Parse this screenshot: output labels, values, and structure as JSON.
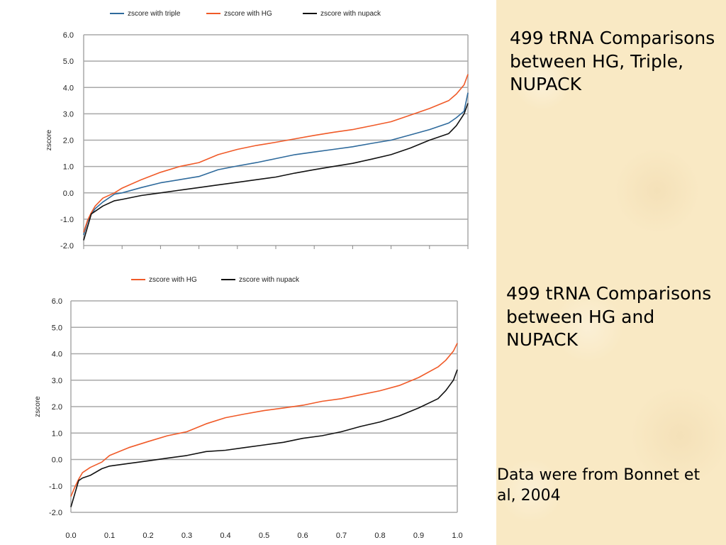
{
  "captions": {
    "chart1": "499 tRNA Comparisons between HG, Triple, NUPACK",
    "chart2": "499 tRNA Comparisons between HG and NUPACK",
    "source": "Data were from Bonnet et al, 2004"
  },
  "colors": {
    "triple": "#2e6a9c",
    "hg": "#f05a28",
    "nupack": "#111111",
    "grid": "#a8a8a8",
    "panel": "#f9e9c4"
  },
  "chart_data": [
    {
      "type": "line",
      "title": "",
      "xlabel": "",
      "ylabel": "zscore",
      "ylim": [
        -2.0,
        6.0
      ],
      "yticks": [
        "6.0",
        "5.0",
        "4.0",
        "3.0",
        "2.0",
        "1.0",
        "0.0",
        "-1.0",
        "-2.0"
      ],
      "xticks": [],
      "xlim": [
        0,
        1
      ],
      "grid": true,
      "legend": "top",
      "x": [
        0,
        0.01,
        0.02,
        0.03,
        0.05,
        0.08,
        0.1,
        0.15,
        0.2,
        0.25,
        0.3,
        0.35,
        0.4,
        0.45,
        0.5,
        0.55,
        0.6,
        0.65,
        0.7,
        0.75,
        0.8,
        0.85,
        0.9,
        0.95,
        0.97,
        0.99,
        1.0
      ],
      "series": [
        {
          "name": "zscore with triple",
          "color": "#2e6a9c",
          "values": [
            -1.6,
            -1.1,
            -0.8,
            -0.6,
            -0.35,
            -0.05,
            0.0,
            0.2,
            0.38,
            0.5,
            0.62,
            0.88,
            1.02,
            1.15,
            1.3,
            1.45,
            1.55,
            1.65,
            1.75,
            1.88,
            2.0,
            2.2,
            2.4,
            2.65,
            2.85,
            3.1,
            3.8
          ]
        },
        {
          "name": "zscore with HG",
          "color": "#f05a28",
          "values": [
            -1.5,
            -1.05,
            -0.75,
            -0.5,
            -0.2,
            0.0,
            0.18,
            0.5,
            0.78,
            1.0,
            1.15,
            1.45,
            1.65,
            1.8,
            1.92,
            2.05,
            2.18,
            2.3,
            2.4,
            2.55,
            2.7,
            2.95,
            3.2,
            3.5,
            3.75,
            4.1,
            4.5
          ]
        },
        {
          "name": "zscore with nupack",
          "color": "#111111",
          "values": [
            -1.8,
            -1.3,
            -0.8,
            -0.7,
            -0.5,
            -0.3,
            -0.25,
            -0.1,
            0.0,
            0.1,
            0.2,
            0.3,
            0.4,
            0.5,
            0.6,
            0.75,
            0.88,
            1.0,
            1.12,
            1.28,
            1.45,
            1.7,
            2.0,
            2.25,
            2.55,
            3.0,
            3.4
          ]
        }
      ]
    },
    {
      "type": "line",
      "title": "",
      "xlabel": "",
      "ylabel": "zscore",
      "ylim": [
        -2.0,
        6.0
      ],
      "yticks": [
        "6.0",
        "5.0",
        "4.0",
        "3.0",
        "2.0",
        "1.0",
        "0.0",
        "-1.0",
        "-2.0"
      ],
      "xticks": [
        "0.0",
        "0.1",
        "0.2",
        "0.3",
        "0.4",
        "0.5",
        "0.6",
        "0.7",
        "0.8",
        "0.9",
        "1.0"
      ],
      "xlim": [
        0,
        1
      ],
      "grid": true,
      "legend": "top",
      "x": [
        0,
        0.01,
        0.02,
        0.03,
        0.05,
        0.08,
        0.1,
        0.15,
        0.2,
        0.25,
        0.3,
        0.35,
        0.4,
        0.45,
        0.5,
        0.55,
        0.6,
        0.65,
        0.7,
        0.75,
        0.8,
        0.85,
        0.9,
        0.95,
        0.97,
        0.99,
        1.0
      ],
      "series": [
        {
          "name": "zscore with HG",
          "color": "#f05a28",
          "values": [
            -1.4,
            -1.05,
            -0.75,
            -0.5,
            -0.3,
            -0.1,
            0.15,
            0.45,
            0.68,
            0.9,
            1.05,
            1.35,
            1.58,
            1.72,
            1.85,
            1.95,
            2.05,
            2.2,
            2.3,
            2.45,
            2.6,
            2.8,
            3.1,
            3.5,
            3.75,
            4.1,
            4.4
          ]
        },
        {
          "name": "zscore with nupack",
          "color": "#111111",
          "values": [
            -1.8,
            -1.3,
            -0.8,
            -0.7,
            -0.6,
            -0.35,
            -0.25,
            -0.15,
            -0.05,
            0.05,
            0.15,
            0.3,
            0.35,
            0.45,
            0.55,
            0.65,
            0.8,
            0.9,
            1.05,
            1.25,
            1.42,
            1.65,
            1.95,
            2.3,
            2.6,
            3.0,
            3.4
          ]
        }
      ]
    }
  ]
}
